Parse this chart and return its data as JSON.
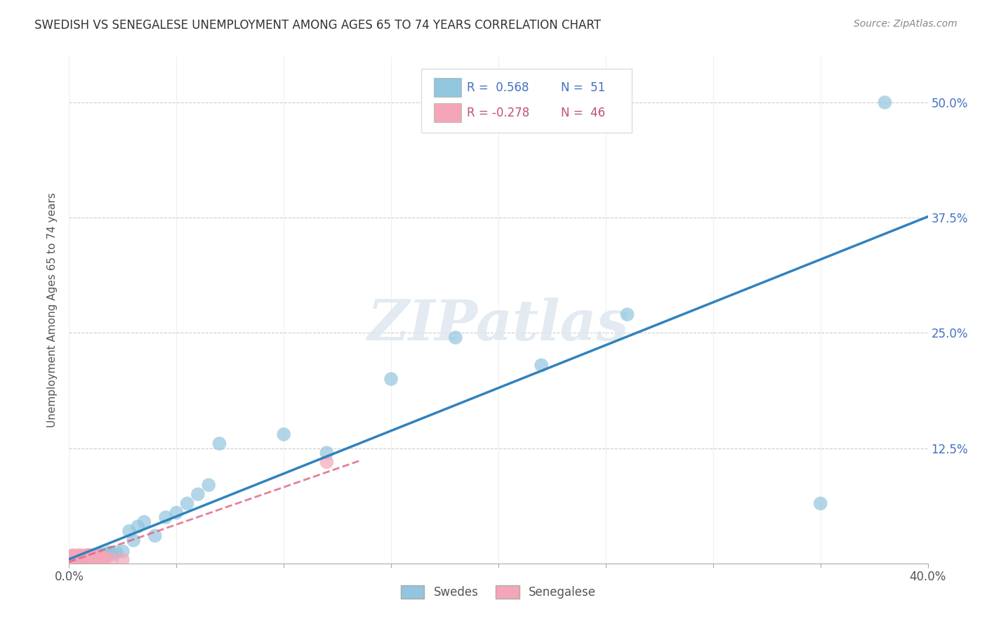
{
  "title": "SWEDISH VS SENEGALESE UNEMPLOYMENT AMONG AGES 65 TO 74 YEARS CORRELATION CHART",
  "source": "Source: ZipAtlas.com",
  "ylabel": "Unemployment Among Ages 65 to 74 years",
  "xlim": [
    0.0,
    0.4
  ],
  "ylim": [
    0.0,
    0.55
  ],
  "xticks": [
    0.0,
    0.05,
    0.1,
    0.15,
    0.2,
    0.25,
    0.3,
    0.35,
    0.4
  ],
  "xtick_labels": [
    "0.0%",
    "",
    "",
    "",
    "",
    "",
    "",
    "",
    "40.0%"
  ],
  "yticks": [
    0.0,
    0.125,
    0.25,
    0.375,
    0.5
  ],
  "ytick_labels": [
    "",
    "12.5%",
    "25.0%",
    "37.5%",
    "50.0%"
  ],
  "blue_R": 0.568,
  "blue_N": 51,
  "pink_R": -0.278,
  "pink_N": 46,
  "blue_color": "#92c5de",
  "pink_color": "#f4a6b8",
  "blue_line_color": "#3182bd",
  "pink_line_color": "#e06080",
  "grid_color": "#cccccc",
  "background_color": "#ffffff",
  "watermark": "ZIPatlas",
  "blue_x": [
    0.001,
    0.001,
    0.002,
    0.002,
    0.003,
    0.003,
    0.003,
    0.004,
    0.004,
    0.005,
    0.005,
    0.006,
    0.006,
    0.007,
    0.007,
    0.008,
    0.008,
    0.009,
    0.01,
    0.01,
    0.011,
    0.012,
    0.013,
    0.014,
    0.015,
    0.016,
    0.017,
    0.018,
    0.019,
    0.02,
    0.022,
    0.025,
    0.028,
    0.03,
    0.032,
    0.035,
    0.04,
    0.045,
    0.05,
    0.055,
    0.06,
    0.065,
    0.07,
    0.1,
    0.12,
    0.15,
    0.18,
    0.22,
    0.26,
    0.35,
    0.38
  ],
  "blue_y": [
    0.003,
    0.004,
    0.005,
    0.003,
    0.004,
    0.005,
    0.006,
    0.004,
    0.006,
    0.005,
    0.006,
    0.005,
    0.007,
    0.006,
    0.007,
    0.006,
    0.008,
    0.007,
    0.008,
    0.009,
    0.008,
    0.009,
    0.008,
    0.01,
    0.009,
    0.01,
    0.009,
    0.011,
    0.012,
    0.01,
    0.012,
    0.013,
    0.035,
    0.025,
    0.04,
    0.045,
    0.03,
    0.05,
    0.055,
    0.065,
    0.075,
    0.085,
    0.13,
    0.14,
    0.12,
    0.2,
    0.245,
    0.215,
    0.27,
    0.065,
    0.5
  ],
  "pink_x": [
    0.0,
    0.0,
    0.0,
    0.0,
    0.0,
    0.0,
    0.001,
    0.001,
    0.001,
    0.001,
    0.001,
    0.002,
    0.002,
    0.002,
    0.002,
    0.003,
    0.003,
    0.003,
    0.003,
    0.004,
    0.004,
    0.004,
    0.005,
    0.005,
    0.005,
    0.006,
    0.006,
    0.006,
    0.007,
    0.007,
    0.008,
    0.008,
    0.009,
    0.009,
    0.01,
    0.01,
    0.011,
    0.012,
    0.013,
    0.014,
    0.015,
    0.016,
    0.017,
    0.02,
    0.025,
    0.12
  ],
  "pink_y": [
    0.003,
    0.004,
    0.005,
    0.006,
    0.007,
    0.008,
    0.004,
    0.005,
    0.006,
    0.007,
    0.008,
    0.005,
    0.006,
    0.007,
    0.009,
    0.005,
    0.006,
    0.007,
    0.008,
    0.004,
    0.006,
    0.008,
    0.005,
    0.007,
    0.009,
    0.006,
    0.007,
    0.008,
    0.006,
    0.008,
    0.006,
    0.009,
    0.007,
    0.009,
    0.007,
    0.008,
    0.007,
    0.008,
    0.007,
    0.006,
    0.007,
    0.006,
    0.005,
    0.005,
    0.004,
    0.11
  ]
}
